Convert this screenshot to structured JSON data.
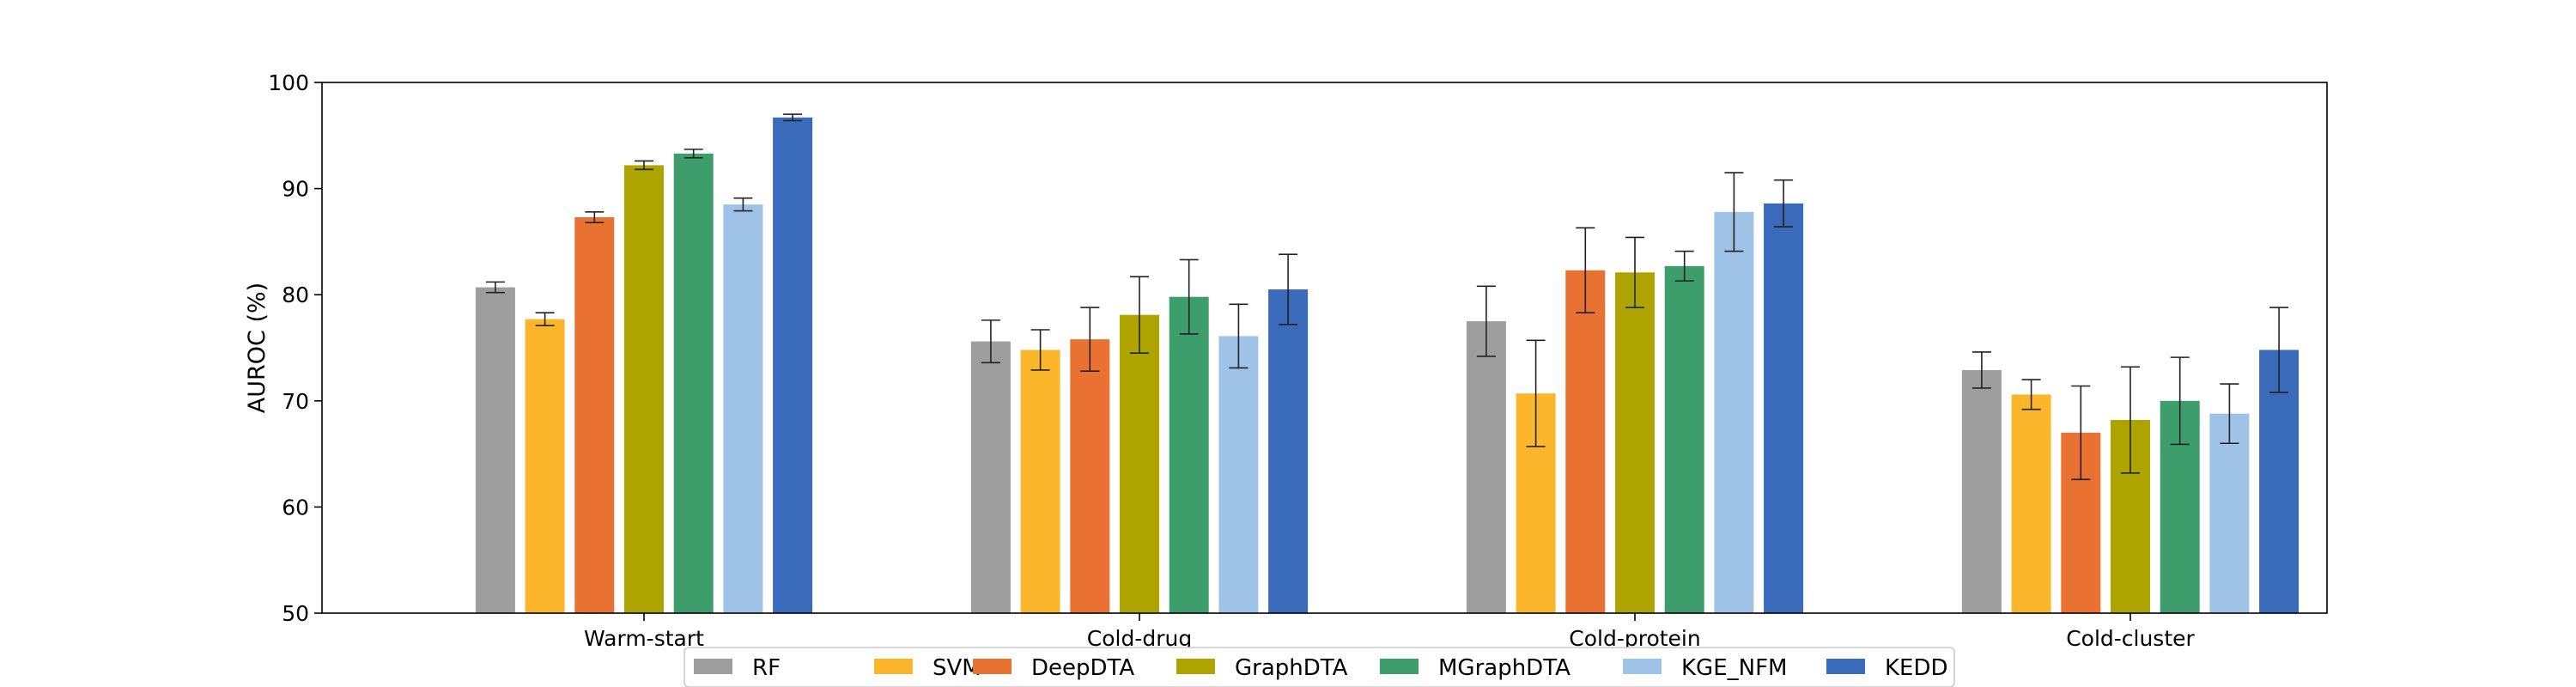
{
  "chart_data": {
    "type": "bar",
    "title": "",
    "xlabel": "",
    "ylabel": "AUROC (%)",
    "ylim": [
      50,
      100
    ],
    "yticks": [
      50,
      60,
      70,
      80,
      90,
      100
    ],
    "grid": false,
    "legend_position": "bottom-center",
    "categories": [
      "Warm-start",
      "Cold-drug",
      "Cold-protein",
      "Cold-cluster"
    ],
    "series": [
      {
        "name": "RF",
        "color": "#9e9e9e",
        "values": [
          80.7,
          75.6,
          77.5,
          72.9
        ],
        "errors": [
          0.5,
          2.0,
          3.3,
          1.7
        ]
      },
      {
        "name": "SVM",
        "color": "#fbb62c",
        "values": [
          77.7,
          74.8,
          70.7,
          70.6
        ],
        "errors": [
          0.6,
          1.9,
          5.0,
          1.4
        ]
      },
      {
        "name": "DeepDTA",
        "color": "#e97132",
        "values": [
          87.3,
          75.8,
          82.3,
          67.0
        ],
        "errors": [
          0.5,
          3.0,
          4.0,
          4.4
        ]
      },
      {
        "name": "GraphDTA",
        "color": "#aea400",
        "values": [
          92.2,
          78.1,
          82.1,
          68.2
        ],
        "errors": [
          0.4,
          3.6,
          3.3,
          5.0
        ]
      },
      {
        "name": "MGraphDTA",
        "color": "#3e9e6b",
        "values": [
          93.3,
          79.8,
          82.7,
          70.0
        ],
        "errors": [
          0.4,
          3.5,
          1.4,
          4.1
        ]
      },
      {
        "name": "KGE_NFM",
        "color": "#9fc3e6",
        "values": [
          88.5,
          76.1,
          87.8,
          68.8
        ],
        "errors": [
          0.6,
          3.0,
          3.7,
          2.8
        ]
      },
      {
        "name": "KEDD",
        "color": "#3a6aba",
        "values": [
          96.7,
          80.5,
          88.6,
          74.8
        ],
        "errors": [
          0.3,
          3.3,
          2.2,
          4.0
        ]
      }
    ]
  }
}
